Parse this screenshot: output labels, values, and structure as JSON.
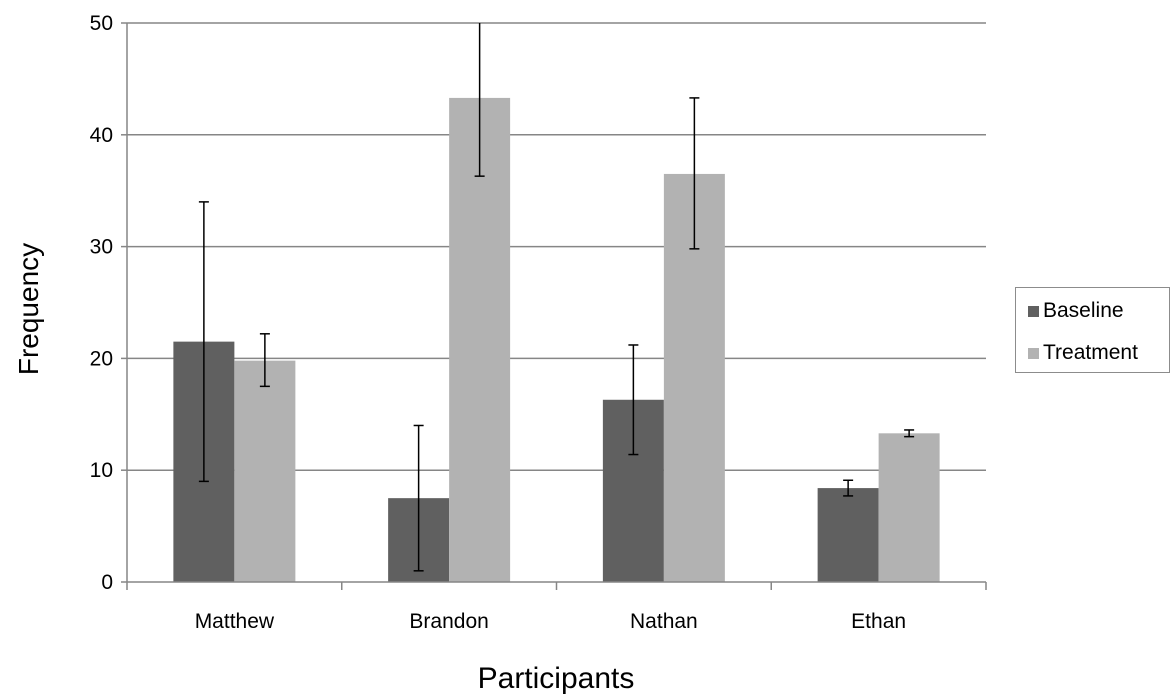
{
  "chart_data": {
    "type": "bar",
    "categories": [
      "Matthew",
      "Brandon",
      "Nathan",
      "Ethan"
    ],
    "series": [
      {
        "name": "Baseline",
        "color": "#606060",
        "values": [
          21.5,
          7.5,
          16.3,
          8.4
        ],
        "error_low": [
          9.0,
          1.0,
          11.4,
          7.7
        ],
        "error_high": [
          34.0,
          14.0,
          21.2,
          9.1
        ]
      },
      {
        "name": "Treatment",
        "color": "#b2b2b2",
        "values": [
          19.8,
          43.3,
          36.5,
          13.3
        ],
        "error_low": [
          17.5,
          36.3,
          29.8,
          13.0
        ],
        "error_high": [
          22.2,
          50.3,
          43.3,
          13.6
        ]
      }
    ],
    "xlabel": "Participants",
    "ylabel": "Frequency",
    "ylim": [
      0,
      50
    ],
    "yticks": [
      0,
      10,
      20,
      30,
      40,
      50
    ],
    "grid": true,
    "legend_position": "right"
  }
}
